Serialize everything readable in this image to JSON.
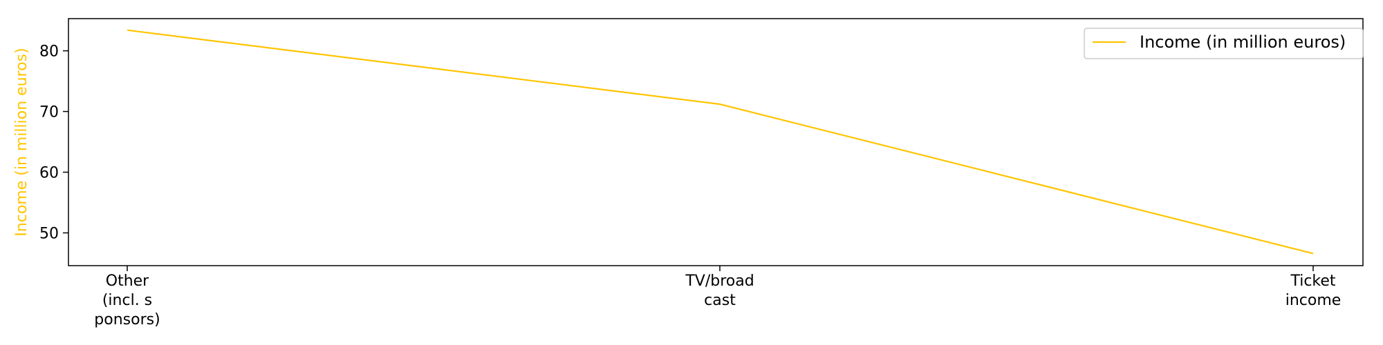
{
  "chart_data": {
    "type": "line",
    "title": "",
    "xlabel": "",
    "ylabel": "Income (in million euros)",
    "categories": [
      [
        "Other",
        "(incl. s",
        "ponsors)"
      ],
      [
        "TV/broad",
        "cast"
      ],
      [
        "Ticket",
        "income"
      ]
    ],
    "series": [
      {
        "name": "Income (in million euros)",
        "values": [
          83.4,
          71.2,
          46.6
        ]
      }
    ],
    "ylim": [
      44.6,
      85.3
    ],
    "yticks": [
      50,
      60,
      70,
      80
    ],
    "grid": false,
    "legend": "top-right",
    "colors": {
      "line": "#ffc400",
      "ylabel": "#ffc400",
      "axis": "#000000",
      "legend_border": "#cccccc"
    }
  }
}
